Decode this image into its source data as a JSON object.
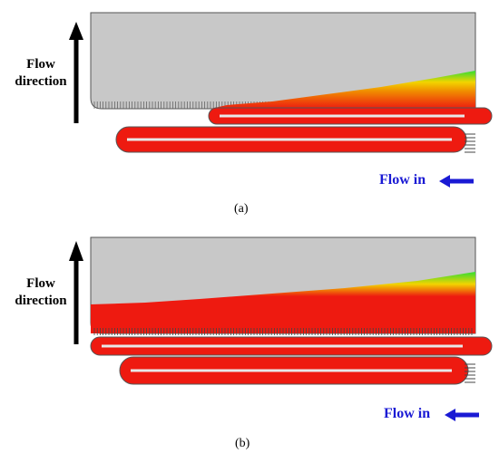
{
  "panels": [
    {
      "id": "a",
      "label": "(a)",
      "flow_direction_label": [
        "Flow",
        "direction"
      ],
      "flow_in_label": "Flow in"
    },
    {
      "id": "b",
      "label": "(b)",
      "flow_direction_label": [
        "Flow",
        "direction"
      ],
      "flow_in_label": "Flow in"
    }
  ],
  "colors": {
    "domain_gray": "#c8c8c8",
    "hot_red": "#ee1a10",
    "flow_in_text": "#1a1ad4",
    "arrow_blue": "#1a1ad4",
    "contour_green": "#33dd33",
    "contour_yellow": "#f2d400",
    "contour_orange": "#f08a00"
  }
}
